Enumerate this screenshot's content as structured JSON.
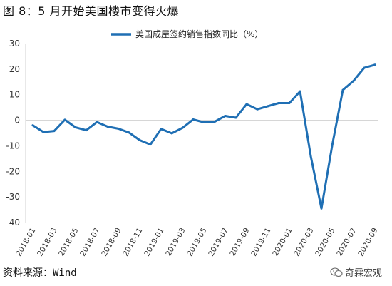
{
  "figure_title": "图 8：5 月开始美国楼市变得火爆",
  "source": {
    "label": "资料来源：",
    "value": "Wind"
  },
  "watermark": {
    "text": "奇霖宏观",
    "icon": "wechat-icon"
  },
  "chart_data": {
    "type": "line",
    "title": "",
    "xlabel": "",
    "ylabel": "",
    "ylim": [
      -40,
      30
    ],
    "yticks": [
      30,
      20,
      10,
      0,
      -10,
      -20,
      -30,
      -40
    ],
    "grid": false,
    "legend_position": "top-center",
    "x": [
      "2018-01",
      "2018-02",
      "2018-03",
      "2018-04",
      "2018-05",
      "2018-06",
      "2018-07",
      "2018-08",
      "2018-09",
      "2018-10",
      "2018-11",
      "2018-12",
      "2019-01",
      "2019-02",
      "2019-03",
      "2019-04",
      "2019-05",
      "2019-06",
      "2019-07",
      "2019-08",
      "2019-09",
      "2019-10",
      "2019-11",
      "2019-12",
      "2020-01",
      "2020-02",
      "2020-03",
      "2020-04",
      "2020-05",
      "2020-06",
      "2020-07",
      "2020-08",
      "2020-09"
    ],
    "xtick_labels": [
      "2018-01",
      "2018-03",
      "2018-05",
      "2018-07",
      "2018-09",
      "2018-11",
      "2019-01",
      "2019-03",
      "2019-05",
      "2019-07",
      "2019-09",
      "2019-11",
      "2020-01",
      "2020-03",
      "2020-05",
      "2020-07",
      "2020-09"
    ],
    "series": [
      {
        "name": "美国成屋签约销售指数同比（%）",
        "color": "#1F6FB4",
        "values": [
          -2,
          -4.6,
          -4.2,
          0.2,
          -2.8,
          -3.9,
          -0.7,
          -2.5,
          -3.3,
          -4.8,
          -7.8,
          -9.5,
          -3.4,
          -5.1,
          -3.0,
          0.3,
          -0.8,
          -0.6,
          1.7,
          1.0,
          6.3,
          4.3,
          5.5,
          6.7,
          6.7,
          11.3,
          -14.0,
          -34.5,
          -10.0,
          11.8,
          15.4,
          20.5,
          21.7
        ]
      }
    ]
  }
}
